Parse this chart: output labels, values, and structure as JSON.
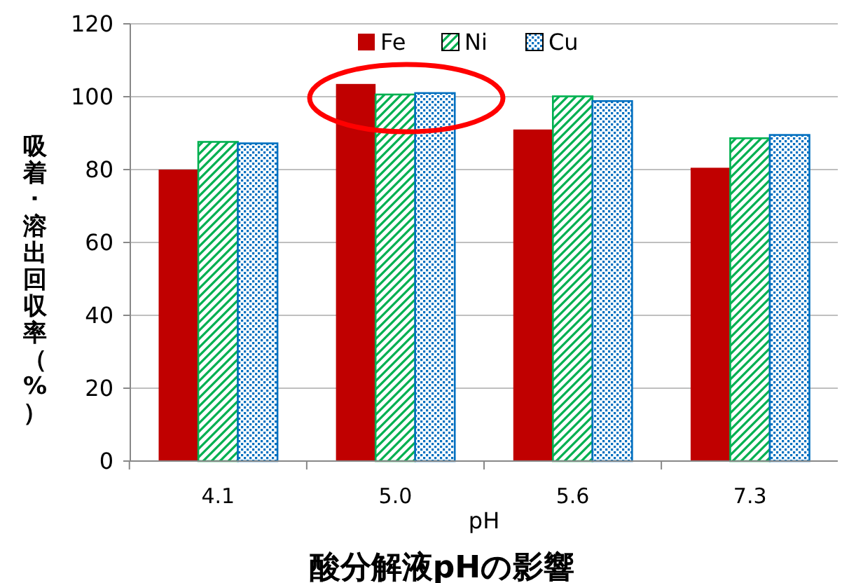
{
  "chart_data": {
    "type": "bar",
    "title": "酸分解液pHの影響",
    "xlabel": "pH",
    "ylabel": "吸着･溶出回収率（%）",
    "categories": [
      "4.1",
      "5.0",
      "5.6",
      "7.3"
    ],
    "series": [
      {
        "name": "Fe",
        "color": "#c00000",
        "values": [
          80,
          103.5,
          91,
          80.5
        ]
      },
      {
        "name": "Ni",
        "color": "#00b050",
        "values": [
          87.6,
          100.6,
          100.1,
          88.6
        ]
      },
      {
        "name": "Cu",
        "color": "#0070c0",
        "values": [
          87.2,
          101,
          98.8,
          89.5
        ]
      }
    ],
    "ylim": [
      0,
      120
    ],
    "yticks": [
      0,
      20,
      40,
      60,
      80,
      100,
      120
    ],
    "grid": "y",
    "legend": "top"
  }
}
